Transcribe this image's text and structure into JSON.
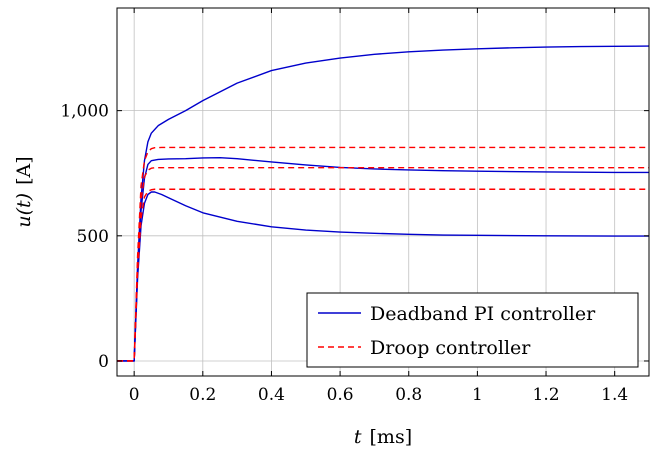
{
  "chart_data": {
    "type": "line",
    "xlabel_var": "t",
    "xlabel_unit": "[ms]",
    "ylabel_var": "u(t)",
    "ylabel_unit": "[A]",
    "xlim": [
      -0.05,
      1.5
    ],
    "ylim": [
      -60,
      1410
    ],
    "grid": true,
    "legend_position": "bottom-right",
    "x_ticks": [
      0,
      0.2,
      0.4,
      0.6,
      0.8,
      1,
      1.2,
      1.4
    ],
    "x_tick_labels": [
      "0",
      "0.2",
      "0.4",
      "0.6",
      "0.8",
      "1",
      "1.2",
      "1.4"
    ],
    "y_ticks": [
      0,
      500,
      1000
    ],
    "y_tick_labels": [
      "0",
      "500",
      "1,000"
    ],
    "colors": {
      "pi": "#0000cc",
      "droop": "#ff0000",
      "grid": "#c0c0c0"
    },
    "legend": [
      {
        "label": "Deadband PI controller",
        "style": "solid",
        "color": "#0000cc"
      },
      {
        "label": "Droop controller",
        "style": "dashed",
        "color": "#ff0000"
      }
    ],
    "series": [
      {
        "group": "Deadband PI controller",
        "style": "solid",
        "color": "#0000cc",
        "x": [
          -0.05,
          0,
          0.01,
          0.02,
          0.03,
          0.04,
          0.05,
          0.07,
          0.1,
          0.15,
          0.2,
          0.3,
          0.4,
          0.5,
          0.6,
          0.7,
          0.8,
          0.9,
          1.0,
          1.1,
          1.2,
          1.3,
          1.4,
          1.5
        ],
        "y": [
          0,
          0,
          380,
          650,
          800,
          875,
          910,
          940,
          965,
          1000,
          1040,
          1110,
          1160,
          1190,
          1210,
          1225,
          1235,
          1242,
          1247,
          1251,
          1254,
          1256,
          1257,
          1258
        ]
      },
      {
        "group": "Deadband PI controller",
        "style": "solid",
        "color": "#0000cc",
        "x": [
          -0.05,
          0,
          0.01,
          0.02,
          0.03,
          0.04,
          0.05,
          0.07,
          0.1,
          0.15,
          0.2,
          0.25,
          0.3,
          0.4,
          0.5,
          0.6,
          0.7,
          0.8,
          0.9,
          1.0,
          1.2,
          1.4,
          1.5
        ],
        "y": [
          0,
          0,
          360,
          600,
          730,
          785,
          800,
          805,
          807,
          808,
          811,
          812,
          808,
          795,
          783,
          773,
          767,
          763,
          760,
          758,
          755,
          753,
          753
        ]
      },
      {
        "group": "Deadband PI controller",
        "style": "solid",
        "color": "#0000cc",
        "x": [
          -0.05,
          0,
          0.01,
          0.02,
          0.03,
          0.04,
          0.05,
          0.06,
          0.08,
          0.1,
          0.15,
          0.2,
          0.3,
          0.4,
          0.5,
          0.6,
          0.7,
          0.8,
          0.9,
          1.0,
          1.2,
          1.4,
          1.5
        ],
        "y": [
          0,
          0,
          330,
          540,
          630,
          665,
          675,
          675,
          665,
          652,
          620,
          592,
          558,
          536,
          523,
          515,
          510,
          506,
          503,
          502,
          500,
          499,
          499
        ]
      },
      {
        "group": "Droop controller",
        "style": "dashed",
        "color": "#ff0000",
        "x": [
          -0.05,
          0,
          0.01,
          0.02,
          0.03,
          0.04,
          0.05,
          0.06,
          0.08,
          0.1,
          0.2,
          0.5,
          1.0,
          1.5
        ],
        "y": [
          0,
          0,
          420,
          700,
          800,
          835,
          848,
          852,
          853,
          853,
          853,
          853,
          853,
          853
        ]
      },
      {
        "group": "Droop controller",
        "style": "dashed",
        "color": "#ff0000",
        "x": [
          -0.05,
          0,
          0.01,
          0.02,
          0.03,
          0.04,
          0.05,
          0.06,
          0.08,
          0.1,
          0.2,
          0.5,
          1.0,
          1.5
        ],
        "y": [
          0,
          0,
          390,
          640,
          735,
          762,
          770,
          772,
          772,
          772,
          772,
          772,
          772,
          772
        ]
      },
      {
        "group": "Droop controller",
        "style": "dashed",
        "color": "#ff0000",
        "x": [
          -0.05,
          0,
          0.01,
          0.02,
          0.03,
          0.04,
          0.05,
          0.06,
          0.08,
          0.1,
          0.2,
          0.5,
          1.0,
          1.5
        ],
        "y": [
          0,
          0,
          350,
          570,
          655,
          678,
          684,
          686,
          686,
          686,
          686,
          686,
          686,
          686
        ]
      }
    ]
  }
}
